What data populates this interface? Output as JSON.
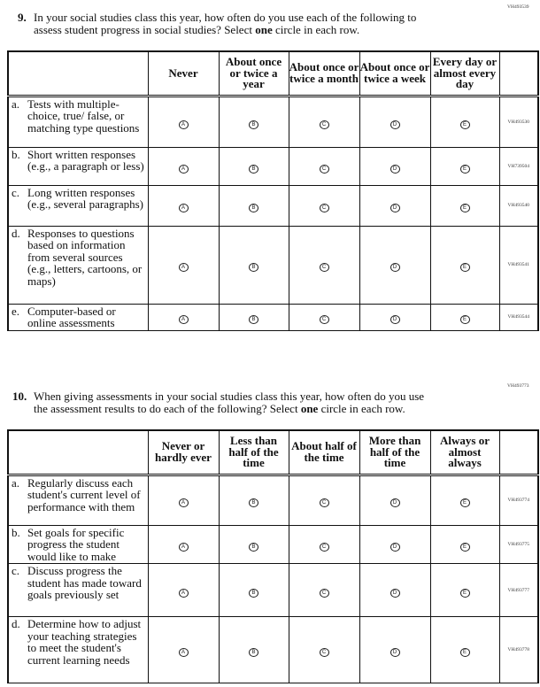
{
  "q9": {
    "code": "VH493539",
    "number": "9.",
    "text_1": "In your social studies class this year, how often do you use each of the following to",
    "text_2a": "assess student progress in social studies? Select ",
    "text_2b": "one",
    "text_2c": " circle in each row.",
    "columns": [
      "Never",
      "About once or twice a year",
      "About once or twice a month",
      "About once or twice a week",
      "Every day or almost every day"
    ],
    "bubbles": [
      "A",
      "B",
      "C",
      "D",
      "E"
    ],
    "rows": [
      {
        "letter": "a.",
        "text": "Tests with multiple-choice, true/ false, or matching type questions",
        "code": "VH493530"
      },
      {
        "letter": "b.",
        "text": "Short written responses (e.g., a paragraph or less)",
        "code": "VH739504"
      },
      {
        "letter": "c.",
        "text": "Long written responses (e.g., several paragraphs)",
        "code": "VH493540"
      },
      {
        "letter": "d.",
        "text": "Responses to questions based on information from several sources (e.g., letters, cartoons, or maps)",
        "code": "VH493541"
      },
      {
        "letter": "e.",
        "text": "Computer-based or online assessments",
        "code": "VH493544"
      }
    ]
  },
  "q10": {
    "code": "VH493773",
    "number": "10.",
    "text_1": "When giving assessments in your social studies class this year, how often do you use",
    "text_2a": "the assessment results to do each of the following? Select ",
    "text_2b": "one",
    "text_2c": " circle in each row.",
    "columns": [
      "Never or hardly ever",
      "Less than half of the time",
      "About half of the time",
      "More than half of the time",
      "Always or almost always"
    ],
    "bubbles": [
      "A",
      "B",
      "C",
      "D",
      "E"
    ],
    "rows": [
      {
        "letter": "a.",
        "text": "Regularly discuss each student's current level of performance with them",
        "code": "VH493774"
      },
      {
        "letter": "b.",
        "text": "Set goals for specific progress the student would like to make",
        "code": "VH493775"
      },
      {
        "letter": "c.",
        "text": "Discuss progress the student has made toward goals previously set",
        "code": "VH493777"
      },
      {
        "letter": "d.",
        "text": "Determine how to adjust your teaching strategies to meet the student's current learning needs",
        "code": "VH493778"
      }
    ]
  }
}
